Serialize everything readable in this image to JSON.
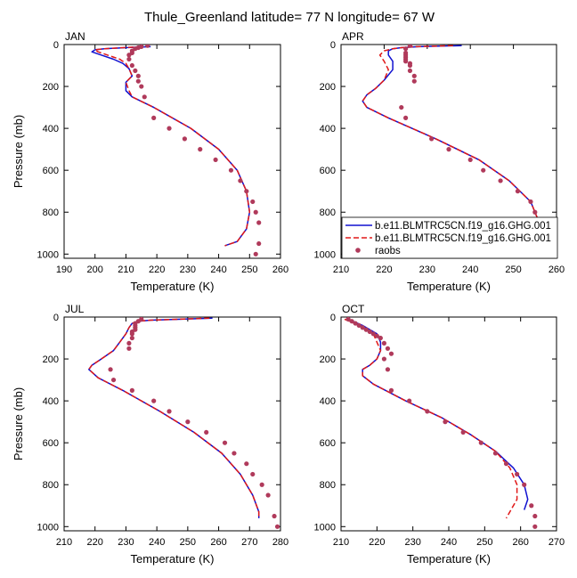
{
  "figure": {
    "title": "Thule_Greenland  latitude= 77 N longitude= 67 W"
  },
  "legend": {
    "placement": "lower-right of APR panel",
    "entries": [
      {
        "label": "b.e11.BLMTRC5CN.f19_g16.GHG.001",
        "style": "solid",
        "color": "#1010d0"
      },
      {
        "label": "b.e11.BLMTRC5CN.f19_g16.GHG.001",
        "style": "dashed",
        "color": "#e01818"
      },
      {
        "label": "raobs",
        "style": "dot",
        "color": "#b03a5b"
      }
    ]
  },
  "chart_data": [
    {
      "type": "line",
      "panel_label": "JAN",
      "xlabel": "Temperature (K)",
      "ylabel": "Pressure (mb)",
      "xlim": [
        190,
        260
      ],
      "ylim": [
        1020,
        0
      ],
      "xticks": [
        190,
        200,
        210,
        220,
        230,
        240,
        250,
        260
      ],
      "yticks": [
        0,
        200,
        400,
        600,
        800,
        1000
      ],
      "series": [
        {
          "style": "solid",
          "color": "#1010d0",
          "x": [
            218,
            210,
            203,
            200,
            199,
            202,
            206,
            209,
            211,
            212,
            210,
            210,
            212,
            219,
            231,
            240,
            246,
            249,
            250,
            249,
            246,
            242
          ],
          "y": [
            10,
            15,
            20,
            25,
            35,
            50,
            70,
            90,
            115,
            150,
            180,
            220,
            250,
            300,
            400,
            500,
            600,
            700,
            800,
            880,
            940,
            960
          ]
        },
        {
          "style": "dashed",
          "color": "#e01818",
          "x": [
            215,
            209,
            203,
            200,
            201,
            204,
            208,
            210,
            211,
            212,
            210,
            211,
            212,
            219,
            231,
            240,
            246,
            249,
            250,
            249,
            246,
            242
          ],
          "y": [
            10,
            15,
            20,
            25,
            35,
            50,
            70,
            90,
            115,
            150,
            180,
            220,
            250,
            300,
            400,
            500,
            600,
            700,
            800,
            880,
            940,
            960
          ]
        },
        {
          "style": "dots",
          "color": "#b03a5b",
          "x": [
            217,
            215,
            214,
            213,
            212,
            212,
            211,
            211,
            212,
            213,
            214,
            214,
            215,
            216,
            219,
            224,
            229,
            234,
            239,
            244,
            247,
            249,
            251,
            252,
            253,
            253,
            252
          ],
          "y": [
            5,
            10,
            15,
            20,
            30,
            40,
            50,
            70,
            100,
            125,
            150,
            175,
            200,
            250,
            350,
            400,
            450,
            500,
            550,
            600,
            650,
            700,
            750,
            800,
            850,
            950,
            1000
          ]
        }
      ]
    },
    {
      "type": "line",
      "panel_label": "APR",
      "xlabel": "Temperature (K)",
      "ylabel": "",
      "xlim": [
        210,
        260
      ],
      "ylim": [
        1020,
        0
      ],
      "xticks": [
        210,
        220,
        230,
        240,
        250,
        260
      ],
      "yticks": [
        0,
        200,
        400,
        600,
        800,
        1000
      ],
      "series": [
        {
          "style": "solid",
          "color": "#1010d0",
          "x": [
            238,
            228,
            224,
            222,
            221,
            221,
            222,
            222,
            220,
            218,
            216,
            215,
            216,
            221,
            232,
            242,
            249,
            254,
            256,
            257,
            256,
            254
          ],
          "y": [
            5,
            10,
            15,
            20,
            30,
            50,
            80,
            120,
            170,
            210,
            240,
            270,
            300,
            350,
            450,
            550,
            650,
            750,
            850,
            900,
            950,
            970
          ]
        },
        {
          "style": "dashed",
          "color": "#e01818",
          "x": [
            236,
            227,
            224,
            222,
            220,
            219,
            220,
            221,
            220,
            218,
            216,
            215,
            216,
            221,
            232,
            242,
            249,
            254,
            256,
            257,
            256,
            254
          ],
          "y": [
            5,
            10,
            15,
            20,
            30,
            50,
            80,
            120,
            170,
            210,
            240,
            270,
            300,
            350,
            450,
            550,
            650,
            750,
            850,
            900,
            950,
            970
          ]
        },
        {
          "style": "dots",
          "color": "#b03a5b",
          "x": [
            226,
            225,
            225,
            225,
            225,
            225,
            225,
            226,
            226,
            226,
            227,
            227,
            224,
            225,
            231,
            235,
            240,
            243,
            247,
            251,
            254,
            255,
            256
          ],
          "y": [
            5,
            20,
            40,
            50,
            60,
            70,
            80,
            90,
            100,
            125,
            150,
            175,
            300,
            350,
            450,
            500,
            550,
            600,
            650,
            700,
            750,
            800,
            850
          ]
        }
      ]
    },
    {
      "type": "line",
      "panel_label": "JUL",
      "xlabel": "Temperature (K)",
      "ylabel": "Pressure (mb)",
      "xlim": [
        210,
        280
      ],
      "ylim": [
        1020,
        0
      ],
      "xticks": [
        210,
        220,
        230,
        240,
        250,
        260,
        270,
        280
      ],
      "yticks": [
        0,
        200,
        400,
        600,
        800,
        1000
      ],
      "series": [
        {
          "style": "solid",
          "color": "#1010d0",
          "x": [
            258,
            248,
            238,
            234,
            232,
            231,
            230,
            228,
            226,
            222,
            219,
            218,
            221,
            229,
            241,
            252,
            261,
            267,
            271,
            273,
            273
          ],
          "y": [
            5,
            10,
            15,
            20,
            30,
            50,
            80,
            120,
            160,
            200,
            230,
            250,
            290,
            350,
            450,
            550,
            650,
            750,
            850,
            930,
            960
          ]
        },
        {
          "style": "dashed",
          "color": "#e01818",
          "x": [
            257,
            247,
            238,
            234,
            232,
            231,
            230,
            228,
            226,
            222,
            219,
            218,
            221,
            229,
            241,
            252,
            261,
            267,
            271,
            273,
            273
          ],
          "y": [
            5,
            10,
            15,
            20,
            30,
            50,
            80,
            120,
            160,
            200,
            230,
            250,
            290,
            350,
            450,
            550,
            650,
            750,
            850,
            930,
            960
          ]
        },
        {
          "style": "dots",
          "color": "#b03a5b",
          "x": [
            235,
            234,
            233,
            233,
            233,
            233,
            232,
            232,
            232,
            231,
            231,
            225,
            226,
            232,
            239,
            244,
            250,
            256,
            262,
            265,
            269,
            271,
            274,
            276,
            278,
            279
          ],
          "y": [
            10,
            20,
            30,
            40,
            50,
            60,
            70,
            80,
            100,
            125,
            150,
            250,
            300,
            350,
            400,
            450,
            500,
            550,
            600,
            650,
            700,
            750,
            800,
            850,
            950,
            1000
          ]
        }
      ]
    },
    {
      "type": "line",
      "panel_label": "OCT",
      "xlabel": "Temperature (K)",
      "ylabel": "",
      "xlim": [
        210,
        270
      ],
      "ylim": [
        1020,
        0
      ],
      "xticks": [
        210,
        220,
        230,
        240,
        250,
        260,
        270
      ],
      "yticks": [
        0,
        200,
        400,
        600,
        800,
        1000
      ],
      "series": [
        {
          "style": "solid",
          "color": "#1010d0",
          "x": [
            212,
            214,
            216,
            218,
            220,
            221,
            221,
            220,
            218,
            216,
            216,
            219,
            228,
            238,
            246,
            253,
            258,
            261,
            262,
            261
          ],
          "y": [
            10,
            25,
            40,
            60,
            80,
            120,
            160,
            200,
            230,
            250,
            280,
            320,
            400,
            480,
            560,
            640,
            720,
            800,
            870,
            920
          ]
        },
        {
          "style": "dashed",
          "color": "#e01818",
          "x": [
            211,
            213,
            215,
            217,
            219,
            220,
            221,
            220,
            218,
            216,
            216,
            219,
            228,
            238,
            246,
            253,
            257,
            259,
            259,
            256
          ],
          "y": [
            10,
            25,
            40,
            60,
            80,
            120,
            160,
            200,
            230,
            250,
            280,
            320,
            400,
            480,
            560,
            640,
            720,
            800,
            870,
            960
          ]
        },
        {
          "style": "dots",
          "color": "#b03a5b",
          "x": [
            212,
            213,
            214,
            215,
            216,
            217,
            218,
            219,
            220,
            221,
            222,
            223,
            224,
            222,
            223,
            224,
            229,
            234,
            239,
            244,
            249,
            253,
            256,
            259,
            261,
            263,
            264,
            264
          ],
          "y": [
            10,
            20,
            30,
            40,
            50,
            60,
            70,
            80,
            90,
            100,
            125,
            150,
            175,
            200,
            250,
            350,
            400,
            450,
            500,
            550,
            600,
            650,
            700,
            750,
            800,
            900,
            950,
            1000
          ]
        }
      ]
    }
  ]
}
